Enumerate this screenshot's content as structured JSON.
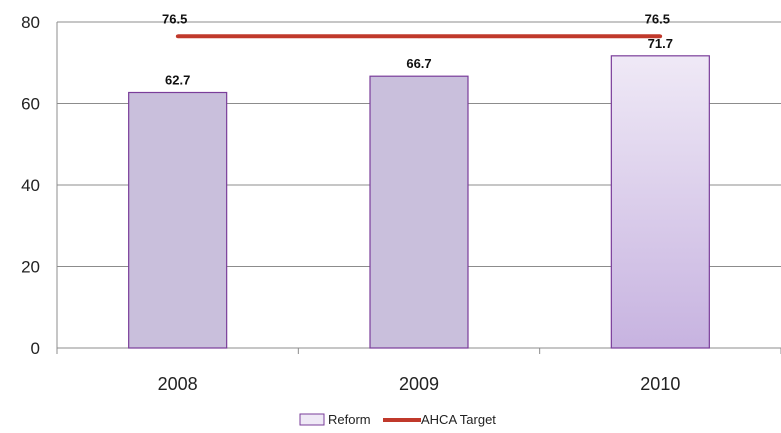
{
  "chart_data": {
    "type": "bar",
    "categories": [
      "2008",
      "2009",
      "2010"
    ],
    "series": [
      {
        "name": "Reform",
        "kind": "bar",
        "values": [
          62.7,
          66.7,
          71.7
        ],
        "labels": [
          "62.7",
          "66.7",
          "71.7"
        ]
      },
      {
        "name": "AHCA Target",
        "kind": "line",
        "values": [
          76.5,
          76.5,
          76.5
        ],
        "labels": [
          "76.5",
          "",
          "76.5"
        ]
      }
    ],
    "ylim": [
      0,
      80
    ],
    "yticks": [
      "0",
      "20",
      "40",
      "60",
      "80"
    ],
    "grid": true,
    "legend_position": "bottom",
    "colors": {
      "bar_fill": "#c9bfdc",
      "bar_fill_last_top": "#efe9f6",
      "bar_fill_last_bottom": "#c7b3e0",
      "bar_stroke": "#7a3d9a",
      "line": "#c0392b",
      "grid": "#8c8c8c"
    }
  }
}
